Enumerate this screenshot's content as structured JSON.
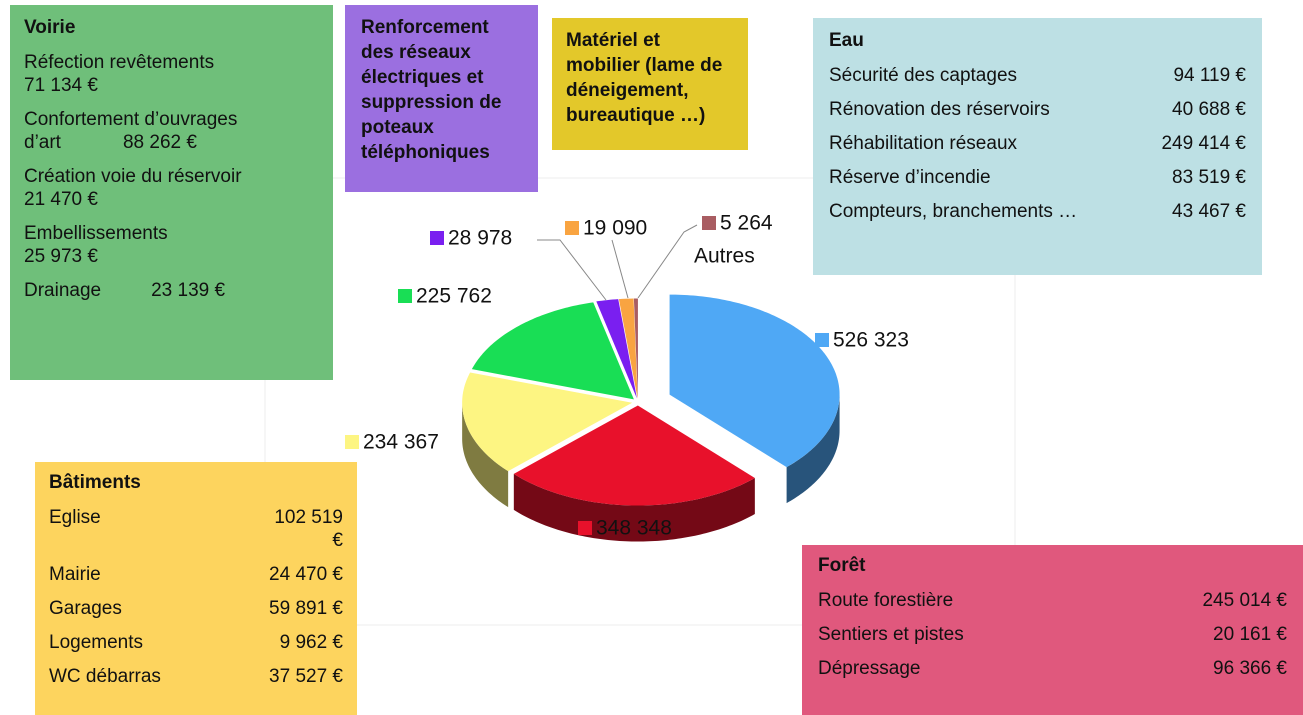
{
  "chart_data": {
    "type": "pie",
    "categories": [
      null,
      null,
      null,
      null,
      null,
      null,
      "Autres"
    ],
    "values": [
      526323,
      348348,
      234367,
      225762,
      28978,
      19090,
      5264
    ],
    "value_labels": [
      "526 323",
      "348 348",
      "234 367",
      "225 762",
      "28 978",
      "19 090",
      "5 264"
    ],
    "colors": [
      "#4fa8f5",
      "#e8112b",
      "#fdf582",
      "#19de55",
      "#7a1ff0",
      "#f9a441",
      "#a95d62"
    ]
  },
  "panels": [
    {
      "title": "Voirie",
      "items": [
        {
          "label": "Réfection revêtements",
          "amount": "71 134 €"
        },
        {
          "label": "Confortement d’ouvrages d’art",
          "amount": "88 262 €"
        },
        {
          "label": "Création voie du réservoir",
          "amount": "21 470 €"
        },
        {
          "label": "Embellissements",
          "amount": "25 973 €"
        },
        {
          "label": "Drainage",
          "amount": "23 139 €"
        }
      ]
    },
    {
      "title": "Renforcement des réseaux électriques et suppression de poteaux téléphoniques",
      "items": []
    },
    {
      "title": "Matériel et mobilier (lame de déneigement, bureautique …)",
      "items": []
    },
    {
      "title": "Eau",
      "items": [
        {
          "label": "Sécurité des captages",
          "amount": "94 119 €"
        },
        {
          "label": "Rénovation des réservoirs",
          "amount": "40 688 €"
        },
        {
          "label": "Réhabilitation réseaux",
          "amount": "249 414 €"
        },
        {
          "label": "Réserve d’incendie",
          "amount": "83 519 €"
        },
        {
          "label": "Compteurs, branchements …",
          "amount": "43 467 €"
        }
      ]
    },
    {
      "title": "Bâtiments",
      "items": [
        {
          "label": "Eglise",
          "amount": "102 519 €"
        },
        {
          "label": "Mairie",
          "amount": "24 470 €"
        },
        {
          "label": "Garages",
          "amount": "59 891 €"
        },
        {
          "label": "Logements",
          "amount": "9 962 €"
        },
        {
          "label": "WC débarras",
          "amount": "37 527 €"
        }
      ]
    },
    {
      "title": "Forêt",
      "items": [
        {
          "label": "Route forestière",
          "amount": "245 014 €"
        },
        {
          "label": "Sentiers et pistes",
          "amount": "20 161 €"
        },
        {
          "label": "Dépressage",
          "amount": "96 366 €"
        }
      ]
    }
  ]
}
